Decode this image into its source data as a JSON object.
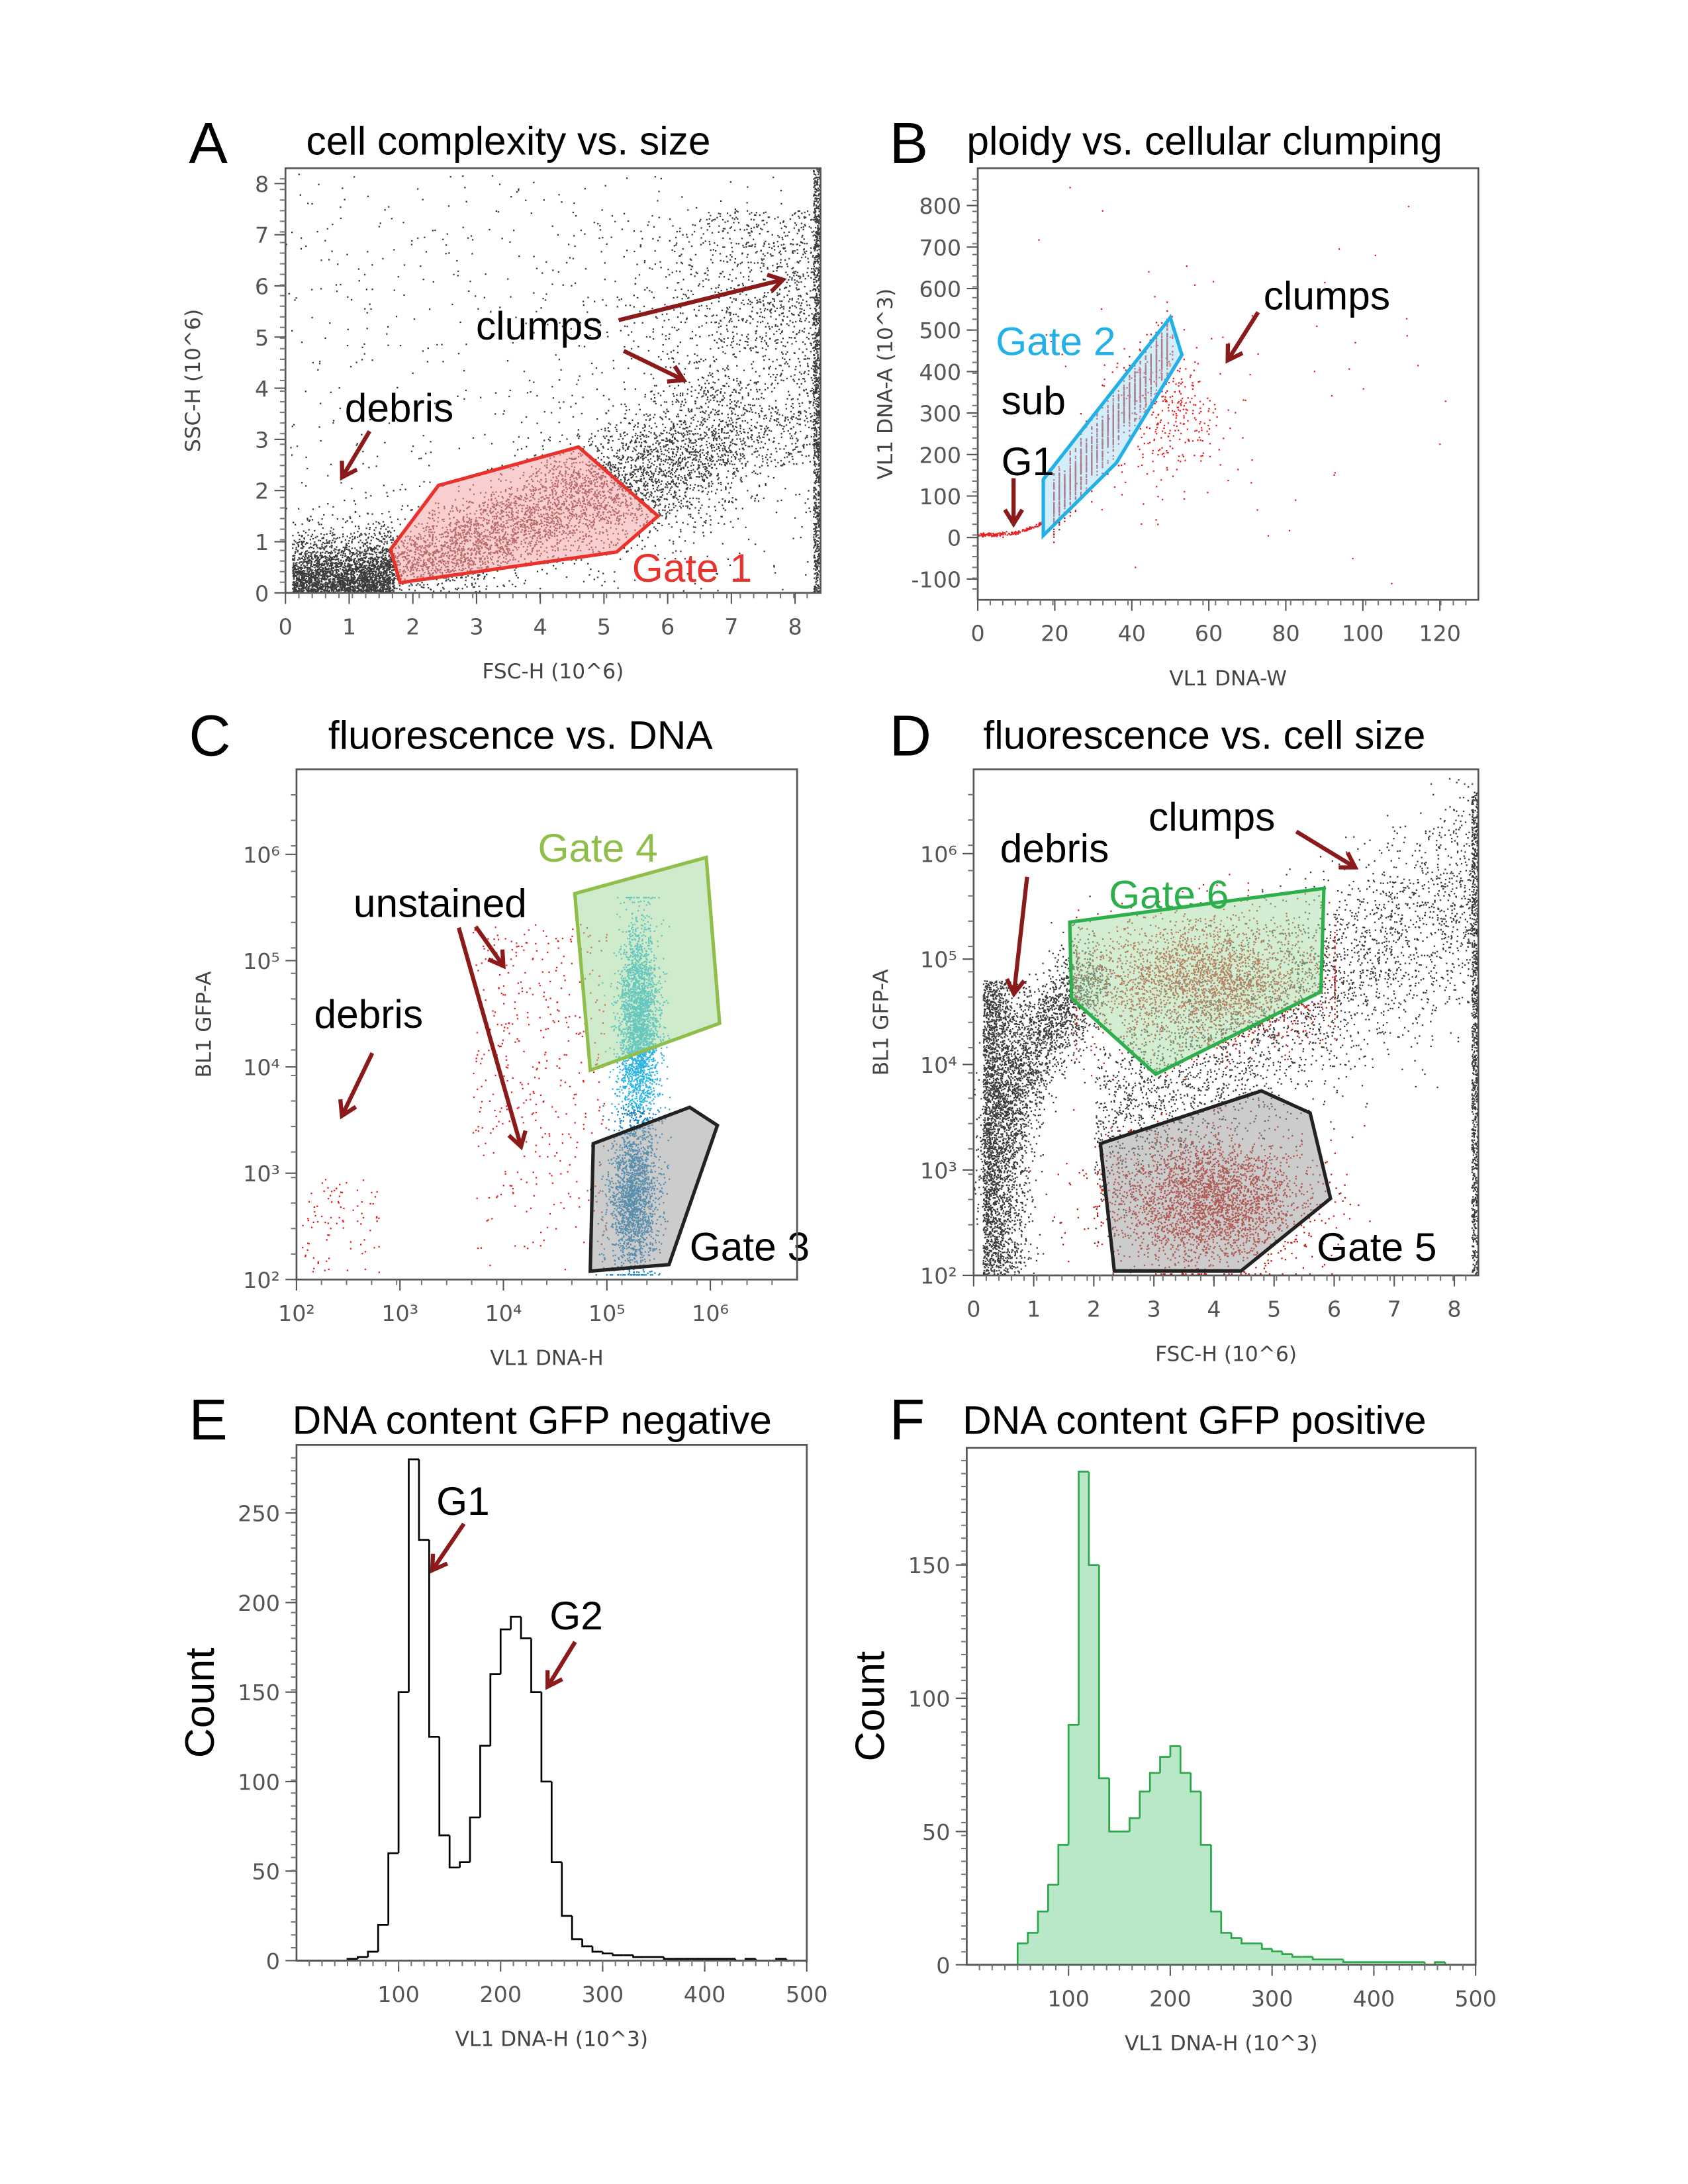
{
  "chart_data": [
    {
      "panel": "A",
      "type": "scatter",
      "title": "cell complexity vs. size",
      "xlabel": "FSC-H (10^6)",
      "ylabel": "SSC-H (10^6)",
      "xscale": "linear",
      "yscale": "linear",
      "xlim": [
        0,
        8.4
      ],
      "ylim": [
        0,
        8.3
      ],
      "x_ticks": [
        0,
        1,
        2,
        3,
        4,
        5,
        6,
        7,
        8
      ],
      "x_tick_labels": [
        "0",
        "1",
        "2",
        "3",
        "4",
        "5",
        "6",
        "7",
        "8"
      ],
      "y_ticks": [
        0,
        1,
        2,
        3,
        4,
        5,
        6,
        7,
        8
      ],
      "y_tick_labels": [
        "0",
        "1",
        "2",
        "3",
        "4",
        "5",
        "6",
        "7",
        "8"
      ],
      "point_colors": {
        "background": "#3a3a3a",
        "gated": "#6e2222"
      },
      "gates": [
        {
          "name": "Gate 1",
          "color": "#e8322b",
          "fill": "#f4a6a6",
          "vertices": [
            [
              1.65,
              0.85
            ],
            [
              2.4,
              2.1
            ],
            [
              4.6,
              2.85
            ],
            [
              5.85,
              1.5
            ],
            [
              5.2,
              0.8
            ],
            [
              1.8,
              0.2
            ]
          ],
          "label_at": [
            5.44,
            0.22
          ]
        }
      ],
      "annotations": [
        {
          "text": "clumps",
          "at": [
            2.99,
            4.95
          ],
          "arrows": [
            [
              [
                5.23,
                5.33
              ],
              [
                7.81,
                6.12
              ]
            ],
            [
              [
                5.31,
                4.73
              ],
              [
                6.25,
                4.16
              ]
            ]
          ]
        },
        {
          "text": "debris",
          "at": [
            0.93,
            3.35
          ],
          "arrows": [
            [
              [
                1.32,
                3.16
              ],
              [
                0.89,
                2.26
              ]
            ]
          ]
        }
      ]
    },
    {
      "panel": "B",
      "type": "scatter",
      "title": "ploidy vs. cellular clumping",
      "xlabel": "VL1 DNA-W",
      "ylabel": "VL1 DNA-A (10^3)",
      "xscale": "linear",
      "yscale": "linear",
      "xlim": [
        0,
        130
      ],
      "ylim": [
        -150,
        890
      ],
      "x_ticks": [
        0,
        20,
        40,
        60,
        80,
        100,
        120
      ],
      "x_tick_labels": [
        "0",
        "20",
        "40",
        "60",
        "80",
        "100",
        "120"
      ],
      "y_ticks": [
        -100,
        0,
        100,
        200,
        300,
        400,
        500,
        600,
        700,
        800
      ],
      "y_tick_labels": [
        "-100",
        "0",
        "100",
        "200",
        "300",
        "400",
        "500",
        "600",
        "700",
        "800"
      ],
      "point_colors": {
        "background": "#e62020",
        "gated": "#b01c2a"
      },
      "gates": [
        {
          "name": "Gate 2",
          "color": "#22b0e6",
          "fill": "#a9ddf3",
          "vertices": [
            [
              17,
              140
            ],
            [
              50,
              530
            ],
            [
              53,
              440
            ],
            [
              36,
              180
            ],
            [
              17,
              5
            ]
          ],
          "label_at": [
            4.66,
            440
          ]
        }
      ],
      "annotations": [
        {
          "text": "sub",
          "at": [
            6.1,
            297
          ],
          "arrows": []
        },
        {
          "text": "G1",
          "at": [
            6.1,
            150
          ],
          "arrows": [
            [
              [
                9.3,
                143
              ],
              [
                9.3,
                33
              ]
            ]
          ]
        },
        {
          "text": "clumps",
          "at": [
            74.2,
            550
          ],
          "arrows": [
            [
              [
                72.8,
                543
              ],
              [
                64.9,
                427
              ]
            ]
          ]
        }
      ]
    },
    {
      "panel": "C",
      "type": "scatter",
      "title": "fluorescence vs. DNA",
      "xlabel": "VL1 DNA-H",
      "ylabel": "BL1 GFP-A",
      "xscale": "log",
      "yscale": "log",
      "xlim": [
        100,
        6900000
      ],
      "ylim": [
        100,
        6300000
      ],
      "x_ticks": [
        100,
        1000,
        10000,
        100000,
        1000000
      ],
      "x_tick_labels": [
        "10²",
        "10³",
        "10⁴",
        "10⁵",
        "10⁶"
      ],
      "y_ticks": [
        100,
        1000,
        10000,
        100000,
        1000000
      ],
      "y_tick_labels": [
        "10²",
        "10³",
        "10⁴",
        "10⁵",
        "10⁶"
      ],
      "point_colors": {
        "stained_high": "#2ab6e2",
        "stained_low": "#1a82c0",
        "unstained": "#e62020"
      },
      "gates": [
        {
          "name": "Gate 4",
          "color": "#8fbf4a",
          "fill": "#9fd89a",
          "vertices": [
            [
              49000,
              427000
            ],
            [
              912000,
              933000
            ],
            [
              1230000,
              25700
            ],
            [
              69000,
              9300
            ]
          ],
          "label_at": [
            21500,
            850000
          ]
        },
        {
          "name": "Gate 3",
          "color": "#222222",
          "fill": "#9a9a9a",
          "vertices": [
            [
              74000,
              1900
            ],
            [
              631000,
              4170
            ],
            [
              1170000,
              2820
            ],
            [
              398000,
              138
            ],
            [
              69000,
              120
            ]
          ],
          "label_at": [
            631000,
            151
          ]
        }
      ],
      "annotations": [
        {
          "text": "unstained",
          "at": [
            355,
            257000
          ],
          "arrows": [
            [
              [
                5400,
                209000
              ],
              [
                10000,
                89000
              ]
            ],
            [
              [
                3700,
                204000
              ],
              [
                14800,
                1780
              ]
            ]
          ]
        },
        {
          "text": "debris",
          "at": [
            148,
            23400
          ],
          "arrows": [
            [
              [
                540,
                13500
              ],
              [
                275,
                3470
              ]
            ]
          ]
        }
      ]
    },
    {
      "panel": "D",
      "type": "scatter",
      "title": "fluorescence vs. cell size",
      "xlabel": "FSC-H (10^6)",
      "ylabel": "BL1 GFP-A",
      "xscale": "linear",
      "yscale": "log",
      "xlim": [
        0,
        8.4
      ],
      "ylim": [
        100,
        6300000
      ],
      "x_ticks": [
        0,
        1,
        2,
        3,
        4,
        5,
        6,
        7,
        8
      ],
      "x_tick_labels": [
        "0",
        "1",
        "2",
        "3",
        "4",
        "5",
        "6",
        "7",
        "8"
      ],
      "y_ticks": [
        100,
        1000,
        10000,
        100000,
        1000000
      ],
      "y_tick_labels": [
        "10²",
        "10³",
        "10⁴",
        "10⁵",
        "10⁶"
      ],
      "point_colors": {
        "background": "#3a3a3a",
        "gfp_high": "#c0261b",
        "gfp_low": "#c41a0e"
      },
      "gates": [
        {
          "name": "Gate 6",
          "color": "#2db04b",
          "fill": "#a8dca8",
          "vertices": [
            [
              1.6,
              224000
            ],
            [
              5.83,
              468000
            ],
            [
              5.78,
              49000
            ],
            [
              3.03,
              8100
            ],
            [
              1.63,
              42700
            ]
          ],
          "label_at": [
            2.25,
            302000
          ]
        },
        {
          "name": "Gate 5",
          "color": "#222222",
          "fill": "#9a9a9a",
          "vertices": [
            [
              2.11,
              1780
            ],
            [
              4.79,
              5620
            ],
            [
              5.6,
              3470
            ],
            [
              5.94,
              537
            ],
            [
              4.45,
              110
            ],
            [
              2.34,
              110
            ]
          ],
          "label_at": [
            5.71,
            138
          ]
        }
      ],
      "annotations": [
        {
          "text": "clumps",
          "at": [
            2.91,
            1660000
          ],
          "arrows": [
            [
              [
                5.37,
                1620000
              ],
              [
                6.35,
                741000
              ]
            ]
          ]
        },
        {
          "text": "debris",
          "at": [
            0.44,
            832000
          ],
          "arrows": [
            [
              [
                0.89,
                603000
              ],
              [
                0.67,
                46800
              ]
            ]
          ]
        }
      ]
    },
    {
      "panel": "E",
      "type": "histogram",
      "title": "DNA content GFP negative",
      "xlabel": "VL1 DNA-H (10^3)",
      "ylabel": "Count",
      "xlim": [
        0,
        500
      ],
      "ylim": [
        0,
        288
      ],
      "x_ticks": [
        100,
        200,
        300,
        400,
        500
      ],
      "x_tick_labels": [
        "100",
        "200",
        "300",
        "400",
        "500"
      ],
      "y_ticks": [
        0,
        50,
        100,
        150,
        200,
        250
      ],
      "y_tick_labels": [
        "0",
        "50",
        "100",
        "150",
        "200",
        "250"
      ],
      "line_color": "#000000",
      "fill_color": "none",
      "bin_width": 10,
      "bin_starts": [
        0,
        10,
        20,
        30,
        40,
        50,
        60,
        70,
        80,
        90,
        100,
        110,
        120,
        130,
        140,
        150,
        160,
        170,
        180,
        190,
        200,
        210,
        220,
        230,
        240,
        250,
        260,
        270,
        280,
        290,
        300,
        310,
        320,
        330,
        340,
        350,
        360,
        370,
        380,
        390,
        400,
        410,
        420,
        430,
        440,
        450,
        460,
        470,
        480,
        490
      ],
      "counts": [
        0,
        0,
        0,
        0,
        0,
        1,
        2,
        5,
        20,
        60,
        150,
        280,
        235,
        125,
        70,
        52,
        55,
        80,
        120,
        160,
        185,
        192,
        180,
        150,
        100,
        55,
        25,
        12,
        8,
        5,
        4,
        3,
        3,
        2,
        2,
        2,
        1,
        1,
        1,
        1,
        1,
        1,
        1,
        0,
        1,
        0,
        0,
        1,
        0,
        0
      ],
      "annotations": [
        {
          "text": "G1",
          "at": [
            137,
            249
          ],
          "arrows": [
            [
              [
                164,
                244
              ],
              [
                133,
                218
              ]
            ]
          ]
        },
        {
          "text": "G2",
          "at": [
            248,
            185
          ],
          "arrows": [
            [
              [
                273,
                178
              ],
              [
                246,
                153
              ]
            ]
          ]
        }
      ]
    },
    {
      "panel": "F",
      "type": "histogram",
      "title": "DNA content GFP positive",
      "xlabel": "VL1 DNA-H (10^3)",
      "ylabel": "Count",
      "xlim": [
        0,
        500
      ],
      "ylim": [
        0,
        194
      ],
      "x_ticks": [
        100,
        200,
        300,
        400,
        500
      ],
      "x_tick_labels": [
        "100",
        "200",
        "300",
        "400",
        "500"
      ],
      "y_ticks": [
        0,
        50,
        100,
        150
      ],
      "y_tick_labels": [
        "0",
        "50",
        "100",
        "150"
      ],
      "line_color": "#2aa84a",
      "fill_color": "#b8e8c8",
      "bin_width": 10,
      "bin_starts": [
        0,
        10,
        20,
        30,
        40,
        50,
        60,
        70,
        80,
        90,
        100,
        110,
        120,
        130,
        140,
        150,
        160,
        170,
        180,
        190,
        200,
        210,
        220,
        230,
        240,
        250,
        260,
        270,
        280,
        290,
        300,
        310,
        320,
        330,
        340,
        350,
        360,
        370,
        380,
        390,
        400,
        410,
        420,
        430,
        440,
        450,
        460,
        470,
        480,
        490
      ],
      "counts": [
        0,
        0,
        0,
        0,
        0,
        8,
        12,
        20,
        30,
        45,
        90,
        185,
        150,
        70,
        50,
        50,
        55,
        65,
        72,
        78,
        82,
        72,
        65,
        45,
        20,
        12,
        10,
        8,
        8,
        6,
        5,
        4,
        3,
        3,
        2,
        2,
        2,
        1,
        1,
        1,
        1,
        1,
        1,
        1,
        1,
        0,
        1,
        0,
        0,
        0
      ],
      "annotations": []
    }
  ],
  "arrow_color": "#8b1a1a"
}
